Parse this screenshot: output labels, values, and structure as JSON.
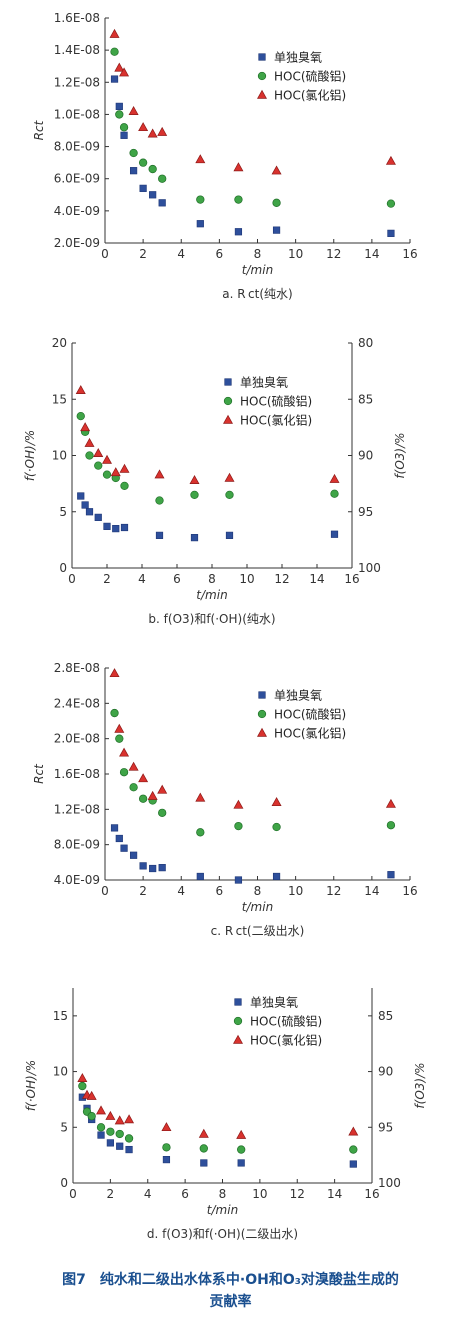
{
  "colors": {
    "single_ozone": "#2e4f9b",
    "hoc_sulfate": "#3fa447",
    "hoc_chloride": "#d8322e",
    "axis": "#333333",
    "caption": "#1a4f8f"
  },
  "legend": {
    "single_ozone": "单独臭氧",
    "hoc_sulfate": "HOC(硫酸铝)",
    "hoc_chloride": "HOC(氯化铝)"
  },
  "figure_caption": {
    "line1": "图7　纯水和二级出水体系中·OH和O₃对溴酸盐生成的",
    "line2": "贡献率"
  },
  "chart_data": [
    {
      "type": "scatter",
      "subcaption": "a. R ct(纯水)",
      "xlabel": "t/min",
      "ylabel": "Rct",
      "xlim": [
        0,
        16
      ],
      "ylim": [
        2e-09,
        1.6e-08
      ],
      "xticks": [
        0,
        2,
        4,
        6,
        8,
        10,
        12,
        14,
        16
      ],
      "yticks": [
        2e-09,
        4e-09,
        6e-09,
        8e-09,
        1e-08,
        1.2e-08,
        1.4e-08,
        1.6e-08
      ],
      "ytick_labels": [
        "2.0E-09",
        "4.0E-09",
        "6.0E-09",
        "8.0E-09",
        "1.0E-08",
        "1.2E-08",
        "1.4E-08",
        "1.6E-08"
      ],
      "legend_position": "top-right",
      "series": [
        {
          "name": "单独臭氧",
          "marker": "square",
          "x": [
            0.5,
            0.75,
            1.0,
            1.5,
            2.0,
            2.5,
            3.0,
            5.0,
            7.0,
            9.0,
            15.0
          ],
          "y": [
            1.22e-08,
            1.05e-08,
            8.7e-09,
            6.5e-09,
            5.4e-09,
            5e-09,
            4.5e-09,
            3.2e-09,
            2.7e-09,
            2.8e-09,
            2.6e-09
          ]
        },
        {
          "name": "HOC(硫酸铝)",
          "marker": "circle",
          "x": [
            0.5,
            0.75,
            1.0,
            1.5,
            2.0,
            2.5,
            3.0,
            5.0,
            7.0,
            9.0,
            15.0
          ],
          "y": [
            1.39e-08,
            1e-08,
            9.2e-09,
            7.6e-09,
            7e-09,
            6.6e-09,
            6e-09,
            4.7e-09,
            4.7e-09,
            4.5e-09,
            4.45e-09
          ]
        },
        {
          "name": "HOC(氯化铝)",
          "marker": "triangle",
          "x": [
            0.5,
            0.75,
            1.0,
            1.5,
            2.0,
            2.5,
            3.0,
            5.0,
            7.0,
            9.0,
            15.0
          ],
          "y": [
            1.5e-08,
            1.29e-08,
            1.26e-08,
            1.02e-08,
            9.2e-09,
            8.8e-09,
            8.9e-09,
            7.2e-09,
            6.7e-09,
            6.5e-09,
            7.1e-09
          ]
        }
      ]
    },
    {
      "type": "scatter",
      "subcaption": "b. f(O3)和f(·OH)(纯水)",
      "xlabel": "t/min",
      "ylabel": "f(·OH)/%",
      "ylabel_right": "f(O3)/%",
      "xlim": [
        0,
        16
      ],
      "ylim": [
        0,
        20
      ],
      "ylim_right": [
        100,
        80
      ],
      "xticks": [
        0,
        2,
        4,
        6,
        8,
        10,
        12,
        14,
        16
      ],
      "yticks": [
        0,
        5,
        10,
        15,
        20
      ],
      "yticks_right": [
        100,
        95,
        90,
        85,
        80
      ],
      "legend_position": "top-right",
      "series": [
        {
          "name": "单独臭氧",
          "marker": "square",
          "x": [
            0.5,
            0.75,
            1.0,
            1.5,
            2.0,
            2.5,
            3.0,
            5.0,
            7.0,
            9.0,
            15.0
          ],
          "y": [
            6.4,
            5.6,
            5.0,
            4.5,
            3.7,
            3.5,
            3.6,
            2.9,
            2.7,
            2.9,
            3.0
          ]
        },
        {
          "name": "HOC(硫酸铝)",
          "marker": "circle",
          "x": [
            0.5,
            0.75,
            1.0,
            1.5,
            2.0,
            2.5,
            3.0,
            5.0,
            7.0,
            9.0,
            15.0
          ],
          "y": [
            13.5,
            12.1,
            10.0,
            9.1,
            8.3,
            8.0,
            7.3,
            6.0,
            6.5,
            6.5,
            6.6
          ]
        },
        {
          "name": "HOC(氯化铝)",
          "marker": "triangle",
          "x": [
            0.5,
            0.75,
            1.0,
            1.5,
            2.0,
            2.5,
            3.0,
            5.0,
            7.0,
            9.0,
            15.0
          ],
          "y": [
            15.8,
            12.5,
            11.1,
            10.2,
            9.6,
            8.5,
            8.8,
            8.3,
            7.8,
            8.0,
            7.9
          ]
        }
      ]
    },
    {
      "type": "scatter",
      "subcaption": "c. R ct(二级出水)",
      "xlabel": "t/min",
      "ylabel": "Rct",
      "xlim": [
        0,
        16
      ],
      "ylim": [
        4e-09,
        2.8e-08
      ],
      "xticks": [
        0,
        2,
        4,
        6,
        8,
        10,
        12,
        14,
        16
      ],
      "yticks": [
        4e-09,
        8e-09,
        1.2e-08,
        1.6e-08,
        2e-08,
        2.4e-08,
        2.8e-08
      ],
      "ytick_labels": [
        "4.0E-09",
        "8.0E-09",
        "1.2E-08",
        "1.6E-08",
        "2.0E-08",
        "2.4E-08",
        "2.8E-08"
      ],
      "legend_position": "top-right",
      "series": [
        {
          "name": "单独臭氧",
          "marker": "square",
          "x": [
            0.5,
            0.75,
            1.0,
            1.5,
            2.0,
            2.5,
            3.0,
            5.0,
            7.0,
            9.0,
            15.0
          ],
          "y": [
            9.9e-09,
            8.7e-09,
            7.6e-09,
            6.8e-09,
            5.6e-09,
            5.3e-09,
            5.4e-09,
            4.4e-09,
            4e-09,
            4.4e-09,
            4.6e-09
          ]
        },
        {
          "name": "HOC(硫酸铝)",
          "marker": "circle",
          "x": [
            0.5,
            0.75,
            1.0,
            1.5,
            2.0,
            2.5,
            3.0,
            5.0,
            7.0,
            9.0,
            15.0
          ],
          "y": [
            2.29e-08,
            2e-08,
            1.62e-08,
            1.45e-08,
            1.32e-08,
            1.3e-08,
            1.16e-08,
            9.4e-09,
            1.01e-08,
            1e-08,
            1.02e-08
          ]
        },
        {
          "name": "HOC(氯化铝)",
          "marker": "triangle",
          "x": [
            0.5,
            0.75,
            1.0,
            1.5,
            2.0,
            2.5,
            3.0,
            5.0,
            7.0,
            9.0,
            15.0
          ],
          "y": [
            2.74e-08,
            2.11e-08,
            1.84e-08,
            1.68e-08,
            1.55e-08,
            1.35e-08,
            1.42e-08,
            1.33e-08,
            1.25e-08,
            1.28e-08,
            1.26e-08
          ]
        }
      ]
    },
    {
      "type": "scatter",
      "subcaption": "d. f(O3)和f(·OH)(二级出水)",
      "xlabel": "t/min",
      "ylabel": "f(·OH)/%",
      "ylabel_right": "f(O3)/%",
      "xlim": [
        0,
        16
      ],
      "ylim": [
        0,
        17.5
      ],
      "ylim_right": [
        100,
        82.5
      ],
      "xticks": [
        0,
        2,
        4,
        6,
        8,
        10,
        12,
        14,
        16
      ],
      "yticks": [
        0,
        5,
        10,
        15
      ],
      "yticks_right": [
        100,
        95,
        90,
        85
      ],
      "legend_position": "top-right",
      "series": [
        {
          "name": "单独臭氧",
          "marker": "square",
          "x": [
            0.5,
            0.75,
            1.0,
            1.5,
            2.0,
            2.5,
            3.0,
            5.0,
            7.0,
            9.0,
            15.0
          ],
          "y": [
            7.7,
            6.7,
            5.7,
            4.3,
            3.6,
            3.3,
            3.0,
            2.1,
            1.8,
            1.8,
            1.7
          ]
        },
        {
          "name": "HOC(硫酸铝)",
          "marker": "circle",
          "x": [
            0.5,
            0.75,
            1.0,
            1.5,
            2.0,
            2.5,
            3.0,
            5.0,
            7.0,
            9.0,
            15.0
          ],
          "y": [
            8.7,
            6.4,
            6.0,
            5.0,
            4.6,
            4.4,
            4.0,
            3.2,
            3.1,
            3.0,
            3.0
          ]
        },
        {
          "name": "HOC(氯化铝)",
          "marker": "triangle",
          "x": [
            0.5,
            0.75,
            1.0,
            1.5,
            2.0,
            2.5,
            3.0,
            5.0,
            7.0,
            9.0,
            15.0
          ],
          "y": [
            9.4,
            7.9,
            7.8,
            6.5,
            6.0,
            5.6,
            5.7,
            5.0,
            4.4,
            4.3,
            4.6
          ]
        }
      ]
    }
  ]
}
